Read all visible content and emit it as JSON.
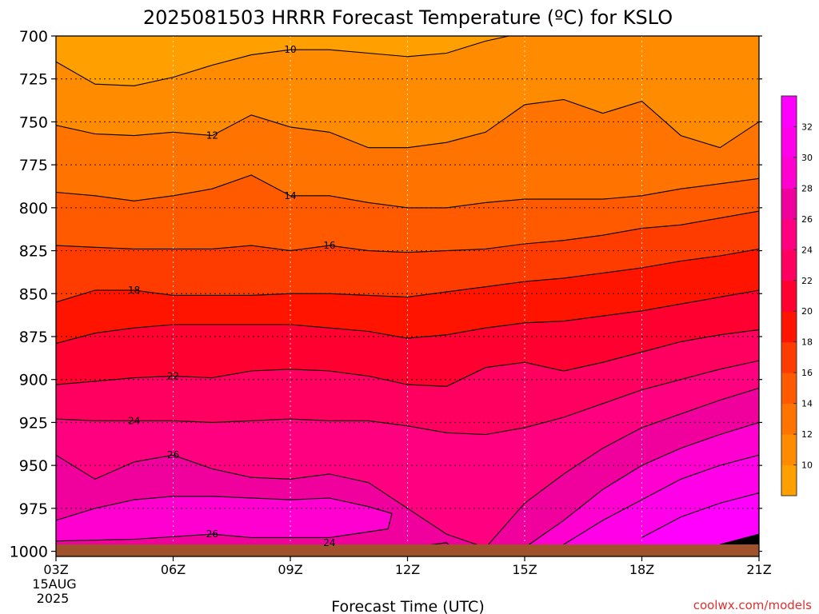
{
  "chart_data": {
    "type": "heatmap",
    "title": "2025081503 HRRR Forecast Temperature (ºC) for KSLO",
    "xlabel": "Forecast Time (UTC)",
    "ylabel": "",
    "credit": "coolwx.com/models",
    "date_label": [
      "15AUG",
      "2025"
    ],
    "x_ticks": [
      {
        "hour": 3,
        "label": "03Z"
      },
      {
        "hour": 6,
        "label": "06Z"
      },
      {
        "hour": 9,
        "label": "09Z"
      },
      {
        "hour": 12,
        "label": "12Z"
      },
      {
        "hour": 15,
        "label": "15Z"
      },
      {
        "hour": 18,
        "label": "18Z"
      },
      {
        "hour": 21,
        "label": "21Z"
      }
    ],
    "xlim": [
      3,
      21
    ],
    "y_ticks": [
      700,
      725,
      750,
      775,
      800,
      825,
      850,
      875,
      900,
      925,
      950,
      975,
      1000
    ],
    "ylim": [
      700,
      1003
    ],
    "y_inverted": true,
    "colorbar": {
      "levels": [
        8,
        10,
        12,
        14,
        16,
        18,
        20,
        22,
        24,
        26,
        28,
        30,
        32,
        34
      ],
      "labels": [
        10,
        12,
        14,
        16,
        18,
        20,
        22,
        24,
        26,
        28,
        30,
        32
      ],
      "colors": [
        "#ff9f00",
        "#ff8c00",
        "#ff7300",
        "#ff5a00",
        "#ff3c00",
        "#ff1400",
        "#ff0030",
        "#ff0060",
        "#ff0080",
        "#f0009c",
        "#ff00d0",
        "#ff00e8",
        "#ff00ff"
      ]
    },
    "ground_color": "#a0522d",
    "grid": true,
    "contour_hours": [
      3,
      4,
      5,
      6,
      7,
      8,
      9,
      10,
      11,
      12,
      13,
      14,
      15,
      16,
      17,
      18,
      19,
      20,
      21
    ],
    "contours": [
      {
        "value": 10,
        "label": "10",
        "label_hour": 9.0,
        "pressures": [
          715,
          728,
          729,
          724,
          717,
          711,
          708,
          708,
          710,
          712,
          710,
          703,
          698,
          698,
          698,
          698,
          698,
          698,
          698
        ]
      },
      {
        "value": 12,
        "label": "12",
        "label_hour": 7.0,
        "pressures": [
          752,
          757,
          758,
          756,
          758,
          746,
          753,
          756,
          765,
          765,
          762,
          756,
          740,
          737,
          745,
          738,
          758,
          765,
          750
        ]
      },
      {
        "value": 14,
        "label": "14",
        "label_hour": 9.0,
        "pressures": [
          791,
          793,
          796,
          793,
          789,
          781,
          793,
          793,
          797,
          800,
          800,
          797,
          795,
          795,
          795,
          793,
          789,
          786,
          783
        ]
      },
      {
        "value": 16,
        "label": "16",
        "label_hour": 10.0,
        "pressures": [
          822,
          823,
          824,
          824,
          824,
          822,
          825,
          822,
          825,
          826,
          825,
          824,
          821,
          819,
          816,
          812,
          810,
          806,
          802
        ]
      },
      {
        "value": 18,
        "label": "18",
        "label_hour": 5.0,
        "pressures": [
          855,
          848,
          848,
          851,
          851,
          851,
          850,
          850,
          851,
          852,
          849,
          846,
          843,
          841,
          838,
          835,
          831,
          828,
          824
        ]
      },
      {
        "value": 20,
        "label": "",
        "label_hour": null,
        "pressures": [
          879,
          873,
          870,
          868,
          868,
          868,
          868,
          870,
          872,
          876,
          874,
          870,
          867,
          866,
          863,
          860,
          856,
          852,
          848
        ]
      },
      {
        "value": 22,
        "label": "22",
        "label_hour": 6.0,
        "pressures": [
          903,
          901,
          899,
          898,
          899,
          895,
          894,
          895,
          898,
          903,
          904,
          893,
          890,
          895,
          890,
          884,
          878,
          874,
          871
        ]
      },
      {
        "value": 24,
        "label": "24",
        "label_hour": 5.0,
        "pressures": [
          923,
          924,
          924,
          924,
          925,
          924,
          923,
          924,
          924,
          927,
          931,
          932,
          928,
          922,
          914,
          906,
          900,
          894,
          889
        ]
      },
      {
        "value": 26,
        "label": "26",
        "label_hour": 6.0,
        "pressures": [
          944,
          958,
          948,
          944,
          952,
          957,
          958,
          955,
          960,
          975,
          990,
          998,
          972,
          955,
          940,
          928,
          920,
          912,
          905
        ]
      },
      {
        "value": 28,
        "label": "",
        "label_hour": null,
        "pressures": [
          null,
          null,
          null,
          null,
          null,
          null,
          null,
          null,
          null,
          null,
          null,
          null,
          1000,
          982,
          964,
          950,
          940,
          932,
          925
        ]
      },
      {
        "value": 30,
        "label": "",
        "label_hour": null,
        "pressures": [
          null,
          null,
          null,
          null,
          null,
          null,
          null,
          null,
          null,
          null,
          null,
          null,
          null,
          996,
          982,
          970,
          958,
          950,
          944
        ]
      },
      {
        "value": 32,
        "label": "",
        "label_hour": null,
        "pressures": [
          null,
          null,
          null,
          null,
          null,
          null,
          null,
          null,
          null,
          null,
          null,
          null,
          null,
          null,
          null,
          992,
          980,
          972,
          966
        ]
      },
      {
        "value": 34,
        "label": "",
        "label_hour": null,
        "pressures": [
          null,
          null,
          null,
          null,
          null,
          null,
          null,
          null,
          null,
          null,
          null,
          null,
          null,
          null,
          null,
          null,
          null,
          996,
          990
        ]
      }
    ],
    "closed_contours": [
      {
        "value": 26,
        "label": "26",
        "label_hour": 7.0,
        "points": [
          [
            3,
            994
          ],
          [
            5,
            993
          ],
          [
            7,
            990
          ],
          [
            8,
            992
          ],
          [
            9,
            992
          ],
          [
            10,
            992
          ],
          [
            11.5,
            987
          ],
          [
            11.6,
            978
          ],
          [
            11,
            974
          ],
          [
            10,
            969
          ],
          [
            9,
            970
          ],
          [
            7,
            968
          ],
          [
            6,
            968
          ],
          [
            5,
            970
          ],
          [
            4,
            975
          ],
          [
            3,
            982
          ]
        ]
      },
      {
        "value": 24,
        "label": "24",
        "label_hour": 10.0,
        "points": [
          [
            3,
            1000
          ],
          [
            6,
            999
          ],
          [
            8,
            998
          ],
          [
            10,
            997
          ],
          [
            11,
            999
          ],
          [
            12,
            998
          ],
          [
            13,
            995
          ],
          [
            13.2,
            999
          ],
          [
            14,
            1000
          ]
        ]
      }
    ]
  }
}
